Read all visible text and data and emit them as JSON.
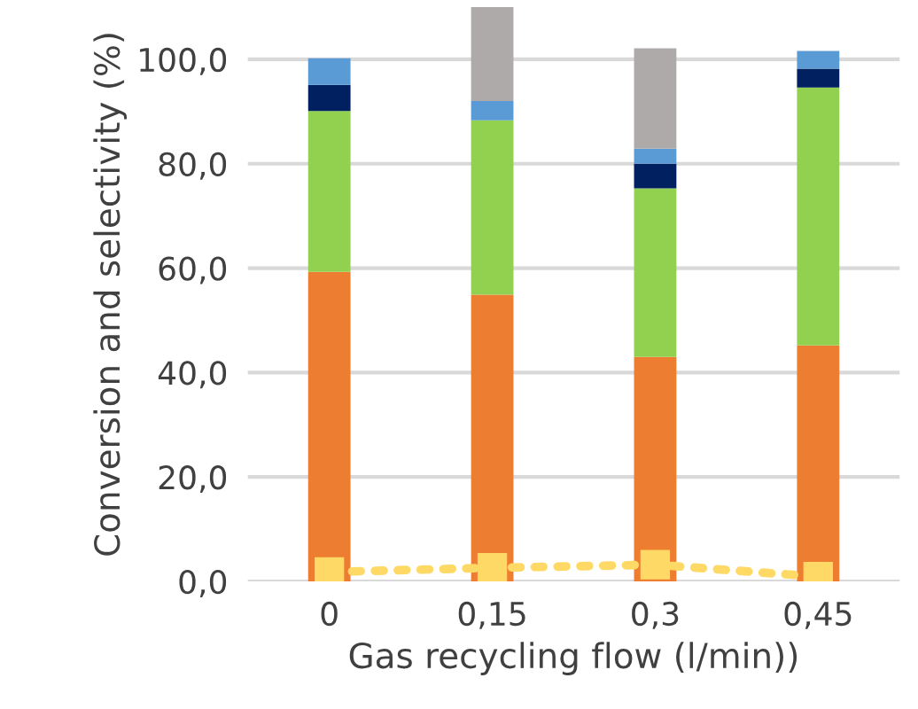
{
  "chart_data": {
    "type": "bar",
    "stacked": true,
    "xlabel": "Gas recycling flow (l/min))",
    "ylabel": "Conversion and selectivity (%)",
    "categories": [
      "0",
      "0,15",
      "0,3",
      "0,45"
    ],
    "series": [
      {
        "color": "#ed7d31",
        "values": [
          59.3,
          54.9,
          43.0,
          45.2
        ]
      },
      {
        "color": "#92d050",
        "values": [
          30.8,
          33.4,
          32.3,
          49.4
        ]
      },
      {
        "color": "#002060",
        "values": [
          5.0,
          0,
          4.7,
          3.6
        ]
      },
      {
        "color": "#5b9bd5",
        "values": [
          5.1,
          3.7,
          2.9,
          3.4
        ]
      },
      {
        "color": "#aeaaaa",
        "values": [
          0,
          18.1,
          19.2,
          0
        ]
      },
      {
        "type": "line",
        "color": "#ffd966",
        "marker": "square",
        "line_style": "dotted",
        "values": [
          1.8,
          2.6,
          3.2,
          0.9
        ]
      }
    ],
    "ylim": [
      0,
      110
    ],
    "yticks": [
      {
        "value": 0,
        "label": "0,0"
      },
      {
        "value": 20,
        "label": "20,0"
      },
      {
        "value": 40,
        "label": "40,0"
      },
      {
        "value": 60,
        "label": "60,0"
      },
      {
        "value": 80,
        "label": "80,0"
      },
      {
        "value": 100,
        "label": "100,0"
      }
    ],
    "grid": "y"
  }
}
